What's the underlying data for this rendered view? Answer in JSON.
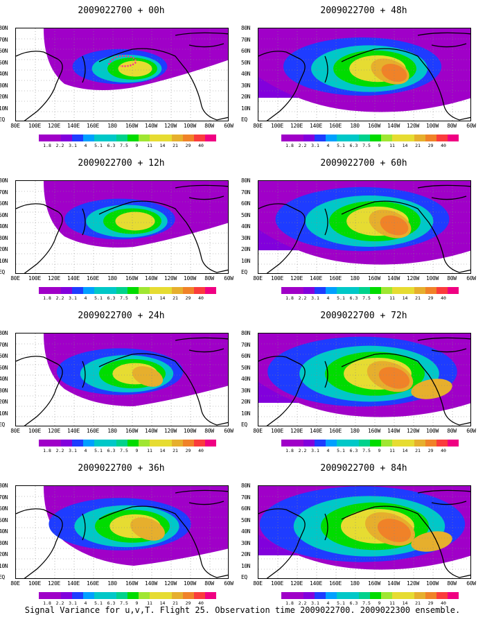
{
  "caption": "Signal Variance for u,v,T. Flight 25. Observation time 2009022700. 2009022300 ensemble.",
  "x_tick_labels": [
    "80E",
    "100E",
    "120E",
    "140E",
    "160E",
    "180",
    "160W",
    "140W",
    "120W",
    "100W",
    "80W",
    "60W"
  ],
  "y_tick_labels": [
    "80N",
    "70N",
    "60N",
    "50N",
    "40N",
    "30N",
    "20N",
    "10N",
    "EQ"
  ],
  "colorbar": {
    "labels": [
      "1.8",
      "2.2",
      "3.1",
      "4",
      "5.1",
      "6.3",
      "7.5",
      "9",
      "11",
      "14",
      "21",
      "29",
      "40"
    ],
    "colors": [
      "#a000c8",
      "#8200dc",
      "#1e3cff",
      "#00a0ff",
      "#00c8c8",
      "#00d28c",
      "#00dc00",
      "#a0e632",
      "#e6dc32",
      "#e6af2d",
      "#f08228",
      "#fa3c3c",
      "#f00082"
    ]
  },
  "panels": [
    {
      "title": "2009022700 + 00h",
      "level": 1
    },
    {
      "title": "2009022700 + 48h",
      "level": 5
    },
    {
      "title": "2009022700 + 12h",
      "level": 2
    },
    {
      "title": "2009022700 + 60h",
      "level": 6
    },
    {
      "title": "2009022700 + 24h",
      "level": 3
    },
    {
      "title": "2009022700 + 72h",
      "level": 7
    },
    {
      "title": "2009022700 + 36h",
      "level": 4
    },
    {
      "title": "2009022700 + 84h",
      "level": 8
    }
  ],
  "flight_track_color": "#ff2a8a"
}
